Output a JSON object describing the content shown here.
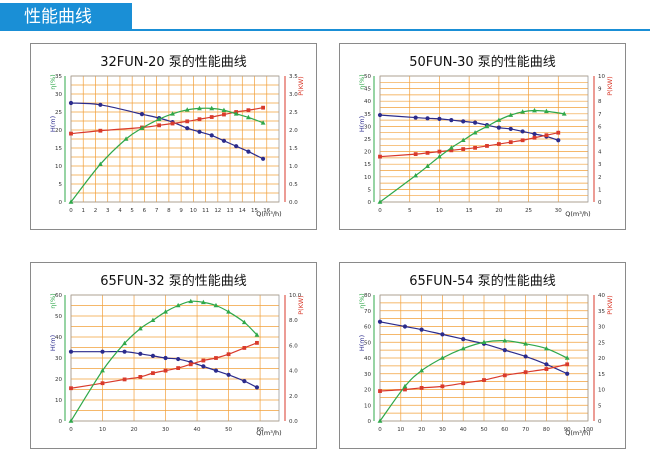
{
  "page": {
    "title": "性能曲线"
  },
  "colors": {
    "header": "#1a8fd6",
    "head": "#2b2b8c",
    "power": "#d93a2b",
    "eff": "#2fa84a",
    "grid": "#f2a03a",
    "axis_right": "#d93a2b",
    "axis_eff": "#2fa84a"
  },
  "chart_data": [
    {
      "type": "line",
      "title": "32FUN-20 泵的性能曲线",
      "xlabel": "Q(m³/h)",
      "ylabel_left": "H(m)",
      "ylabel_eff": "η(%)",
      "ylabel_right": "P(KW)",
      "xlim": [
        0,
        17
      ],
      "xticks": [
        0,
        1,
        2,
        3,
        4,
        5,
        6,
        7,
        8,
        9,
        10,
        11,
        12,
        13,
        14,
        15,
        16
      ],
      "ylim_left": [
        0,
        35
      ],
      "yticks_left": [
        0,
        5,
        10,
        15,
        20,
        25,
        30,
        35
      ],
      "ylim_right": [
        0,
        3.5
      ],
      "yticks_right": [
        "0.0",
        "0.5",
        "1.0",
        "1.5",
        "2.0",
        "2.5",
        "3.0",
        "3.5"
      ],
      "series": [
        {
          "axis": "left",
          "markers": "circle",
          "x": [
            0,
            2.4,
            5.8,
            7.2,
            8.3,
            9.5,
            10.5,
            11.5,
            12.5,
            13.5,
            14.5,
            15.7
          ],
          "y": [
            27.5,
            27,
            24.4,
            23.3,
            22.2,
            20.5,
            19.5,
            18.5,
            17,
            15.5,
            14,
            12
          ]
        },
        {
          "axis": "right",
          "markers": "square",
          "x": [
            0,
            2.4,
            5.8,
            7.2,
            8.3,
            9.5,
            10.5,
            11.5,
            12.5,
            13.5,
            14.5,
            15.7
          ],
          "y": [
            1.9,
            1.98,
            2.07,
            2.13,
            2.18,
            2.24,
            2.3,
            2.36,
            2.43,
            2.5,
            2.55,
            2.62
          ]
        },
        {
          "axis": "left",
          "markers": "triangle",
          "x": [
            0,
            2.4,
            4.5,
            5.8,
            7.2,
            8.3,
            9.5,
            10.5,
            11.5,
            12.5,
            13.5,
            14.5,
            15.7
          ],
          "y": [
            0,
            10.5,
            17.5,
            20.5,
            23,
            24.5,
            25.6,
            26,
            26,
            25.5,
            24.5,
            23.5,
            22
          ]
        }
      ]
    },
    {
      "type": "line",
      "title": "50FUN-30 泵的性能曲线",
      "xlabel": "Q(m³/h)",
      "ylabel_left": "H(m)",
      "ylabel_eff": "η(%)",
      "ylabel_right": "P(KW)",
      "xlim": [
        0,
        35
      ],
      "xticks": [
        0,
        5,
        10,
        15,
        20,
        25,
        30
      ],
      "ylim_left": [
        0,
        50
      ],
      "yticks_left": [
        0,
        5,
        10,
        15,
        20,
        25,
        30,
        35,
        40,
        45,
        50
      ],
      "ylim_right": [
        0,
        10
      ],
      "yticks_right": [
        "0",
        "1",
        "2",
        "3",
        "4",
        "5",
        "6",
        "7",
        "8",
        "9",
        "10"
      ],
      "series": [
        {
          "axis": "left",
          "markers": "circle",
          "x": [
            0,
            6,
            8,
            10,
            12,
            14,
            16,
            18,
            20,
            22,
            24,
            26,
            28,
            30
          ],
          "y": [
            34.5,
            33.5,
            33.2,
            33,
            32.5,
            32,
            31.5,
            30.5,
            29.5,
            29,
            28,
            27,
            26,
            24.5
          ]
        },
        {
          "axis": "right",
          "markers": "square",
          "x": [
            0,
            6,
            8,
            10,
            12,
            14,
            16,
            18,
            20,
            22,
            24,
            26,
            28,
            30
          ],
          "y": [
            3.6,
            3.8,
            3.9,
            4.0,
            4.1,
            4.2,
            4.3,
            4.45,
            4.6,
            4.75,
            4.9,
            5.1,
            5.3,
            5.5
          ]
        },
        {
          "axis": "left",
          "markers": "triangle",
          "x": [
            0,
            6,
            8,
            10,
            12,
            14,
            16,
            18,
            20,
            22,
            24,
            26,
            28,
            31
          ],
          "y": [
            0,
            10.5,
            14.2,
            18,
            21.5,
            24.5,
            27.5,
            30,
            32.5,
            34.5,
            35.8,
            36.3,
            36,
            35
          ]
        }
      ]
    },
    {
      "type": "line",
      "title": "65FUN-32 泵的性能曲线",
      "xlabel": "Q(m³/h)",
      "ylabel_left": "H(m)",
      "ylabel_eff": "η(%)",
      "ylabel_right": "P(KW)",
      "xlim": [
        0,
        66
      ],
      "xticks": [
        0,
        10,
        20,
        30,
        40,
        50,
        60
      ],
      "ylim_left": [
        0,
        60
      ],
      "yticks_left": [
        0,
        10,
        20,
        30,
        40,
        50,
        60
      ],
      "ylim_right": [
        0,
        10
      ],
      "yticks_right": [
        "0.0",
        "2.0",
        "4.0",
        "6.0",
        "8.0",
        "10.0"
      ],
      "series": [
        {
          "axis": "left",
          "markers": "circle",
          "x": [
            0,
            10,
            17,
            22,
            26,
            30,
            34,
            38,
            42,
            46,
            50,
            55,
            59
          ],
          "y": [
            33,
            33,
            33,
            32,
            31,
            30,
            29.5,
            28,
            26,
            24,
            22,
            19,
            16
          ]
        },
        {
          "axis": "right",
          "markers": "square",
          "x": [
            0,
            10,
            17,
            22,
            26,
            30,
            34,
            38,
            42,
            46,
            50,
            55,
            59
          ],
          "y": [
            2.6,
            3.0,
            3.3,
            3.5,
            3.8,
            4.0,
            4.2,
            4.5,
            4.8,
            5.0,
            5.3,
            5.8,
            6.2
          ]
        },
        {
          "axis": "left",
          "markers": "triangle",
          "x": [
            0,
            10,
            17,
            22,
            26,
            30,
            34,
            38,
            42,
            46,
            50,
            55,
            59
          ],
          "y": [
            0,
            24,
            37,
            44,
            48,
            52,
            55,
            57,
            56.5,
            55,
            52,
            47,
            41
          ]
        }
      ]
    },
    {
      "type": "line",
      "title": "65FUN-54 泵的性能曲线",
      "xlabel": "Q(m³/h)",
      "ylabel_left": "H(m)",
      "ylabel_eff": "η(%)",
      "ylabel_right": "P(KW)",
      "xlim": [
        0,
        100
      ],
      "xticks": [
        0,
        10,
        20,
        30,
        40,
        50,
        60,
        70,
        80,
        90,
        100
      ],
      "ylim_left": [
        0,
        80
      ],
      "yticks_left": [
        0,
        10,
        20,
        30,
        40,
        50,
        60,
        70,
        80
      ],
      "ylim_right": [
        0,
        40
      ],
      "yticks_right": [
        "0",
        "5",
        "10",
        "15",
        "20",
        "25",
        "30",
        "35",
        "40"
      ],
      "series": [
        {
          "axis": "left",
          "markers": "circle",
          "x": [
            0,
            12,
            20,
            30,
            40,
            50,
            60,
            70,
            80,
            90
          ],
          "y": [
            63,
            60,
            58,
            55,
            52,
            49,
            45,
            41,
            36,
            30
          ]
        },
        {
          "axis": "right",
          "markers": "square",
          "x": [
            0,
            12,
            20,
            30,
            40,
            50,
            60,
            70,
            80,
            90
          ],
          "y": [
            9.5,
            10.0,
            10.5,
            11.0,
            12.0,
            13.0,
            14.5,
            15.5,
            16.5,
            18.0
          ]
        },
        {
          "axis": "left",
          "markers": "triangle",
          "x": [
            0,
            12,
            20,
            30,
            40,
            50,
            60,
            70,
            80,
            90
          ],
          "y": [
            0,
            22,
            32,
            40,
            46,
            50,
            51,
            49,
            46,
            40
          ]
        }
      ]
    }
  ]
}
